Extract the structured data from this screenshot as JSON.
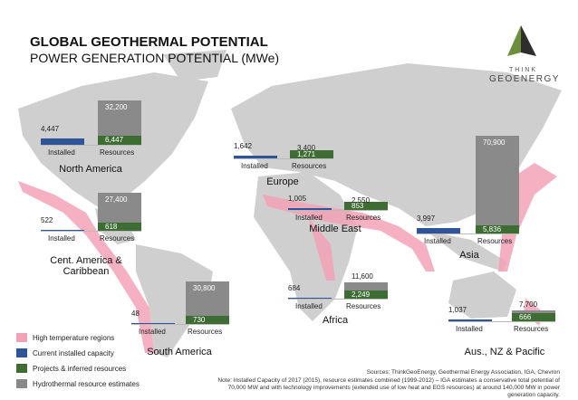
{
  "header": {
    "title": "GLOBAL GEOTHERMAL POTENTIAL",
    "subtitle": "POWER GENERATION POTENTIAL (MWe)"
  },
  "logo": {
    "line1": "THINK",
    "line2": "GEOENERGY"
  },
  "bar_labels": {
    "installed": "Installed",
    "resources": "Resources"
  },
  "colors": {
    "installed": "#2e5597",
    "projects": "#3e6d33",
    "hydrothermal": "#8a8a8a"
  },
  "regions": [
    {
      "name": "North America",
      "installed": 4447,
      "installed_label": "4,447",
      "projects": 6447,
      "projects_label": "6,447",
      "hydrothermal": 32200,
      "hydrothermal_label": "32,200"
    },
    {
      "name": "Cent. America & Caribbean",
      "installed": 522,
      "installed_label": "522",
      "projects": 618,
      "projects_label": "618",
      "hydrothermal": 27400,
      "hydrothermal_label": "27,400"
    },
    {
      "name": "South America",
      "installed": 48,
      "installed_label": "48",
      "projects": 730,
      "projects_label": "730",
      "hydrothermal": 30800,
      "hydrothermal_label": "30,800"
    },
    {
      "name": "Europe",
      "installed": 1642,
      "installed_label": "1,642",
      "projects": 1271,
      "projects_label": "1,271",
      "hydrothermal": 3400,
      "hydrothermal_label": "3,400"
    },
    {
      "name": "Middle East",
      "installed": 1005,
      "installed_label": "1,005",
      "projects": 853,
      "projects_label": "853",
      "hydrothermal": 2550,
      "hydrothermal_label": "2,550"
    },
    {
      "name": "Africa",
      "installed": 684,
      "installed_label": "684",
      "projects": 2249,
      "projects_label": "2,249",
      "hydrothermal": 11600,
      "hydrothermal_label": "11,600"
    },
    {
      "name": "Asia",
      "installed": 3997,
      "installed_label": "3,997",
      "projects": 5836,
      "projects_label": "5,836",
      "hydrothermal": 70900,
      "hydrothermal_label": "70,900"
    },
    {
      "name": "Aus., NZ & Pacific",
      "installed": 1037,
      "installed_label": "1,037",
      "projects": 666,
      "projects_label": "666",
      "hydrothermal": 7700,
      "hydrothermal_label": "7,700"
    }
  ],
  "legend": [
    {
      "label": "High temperature regions",
      "color": "#f3a2b6"
    },
    {
      "label": "Current installed capacity",
      "color": "#2e5597"
    },
    {
      "label": "Projects & inferred resources",
      "color": "#3e6d33"
    },
    {
      "label": "Hydrothermal resource estimates",
      "color": "#8a8a8a"
    }
  ],
  "sources": "Sources: ThinkGeoEnergy, Geothermal Energy Association, IGA, Chevron",
  "note": "Note: Installed Capacity of 2017 (2015), resource estimates combined (1999-2012) – IGA estimates a conservative total potential of 70,000 MW and with technology improvements (extended use of low heat and EGS resources) at around 140,000 MW in power generation capacity."
}
